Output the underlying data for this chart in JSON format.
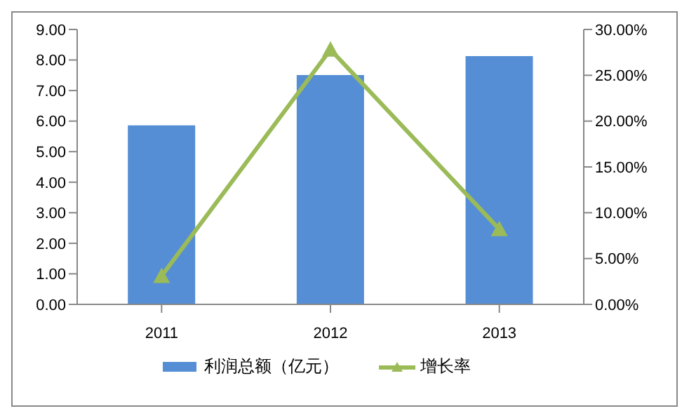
{
  "chart_data": {
    "type": "bar",
    "categories": [
      "2011",
      "2012",
      "2013"
    ],
    "series": [
      {
        "name": "利润总额（亿元）",
        "color": "#558ed5",
        "values": [
          5.86,
          7.51,
          8.13
        ]
      },
      {
        "name": "增长率",
        "type": "line",
        "axis": "y2",
        "color": "#9bbb59",
        "marker": "triangle",
        "values": [
          3.1,
          27.8,
          8.2
        ]
      }
    ],
    "ylim": [
      0,
      9
    ],
    "yticks": [
      {
        "value": 0,
        "label": "0.00"
      },
      {
        "value": 1,
        "label": "1.00"
      },
      {
        "value": 2,
        "label": "2.00"
      },
      {
        "value": 3,
        "label": "3.00"
      },
      {
        "value": 4,
        "label": "4.00"
      },
      {
        "value": 5,
        "label": "5.00"
      },
      {
        "value": 6,
        "label": "6.00"
      },
      {
        "value": 7,
        "label": "7.00"
      },
      {
        "value": 8,
        "label": "8.00"
      },
      {
        "value": 9,
        "label": "9.00"
      }
    ],
    "y2lim": [
      0,
      30
    ],
    "y2ticks": [
      {
        "value": 0,
        "label": "0.00%"
      },
      {
        "value": 5,
        "label": "5.00%"
      },
      {
        "value": 10,
        "label": "10.00%"
      },
      {
        "value": 15,
        "label": "15.00%"
      },
      {
        "value": 20,
        "label": "20.00%"
      },
      {
        "value": 25,
        "label": "25.00%"
      },
      {
        "value": 30,
        "label": "30.00%"
      }
    ],
    "grid": false,
    "legend": "bottom"
  }
}
